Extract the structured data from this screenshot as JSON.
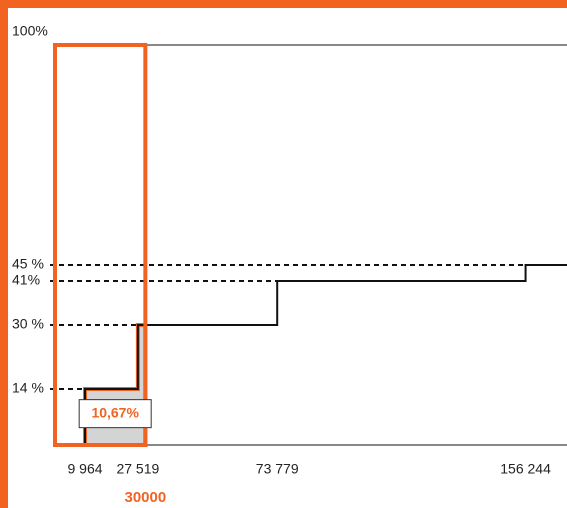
{
  "chart_data": {
    "type": "step",
    "series": [
      {
        "color": "#111111",
        "x": [
          0,
          9964,
          27519,
          73779,
          156244
        ],
        "values": [
          0,
          14,
          30,
          41,
          45
        ]
      }
    ],
    "xlim": [
      0,
      170000
    ],
    "ylim": [
      0,
      100
    ],
    "xticks": [
      {
        "value": 9964,
        "label": "9 964"
      },
      {
        "value": 27519,
        "label": "27 519"
      },
      {
        "value": 73779,
        "label": "73 779"
      },
      {
        "value": 156244,
        "label": "156 244"
      }
    ],
    "yticks": [
      {
        "value": 14,
        "label": "14 %"
      },
      {
        "value": 30,
        "label": "30 %"
      },
      {
        "value": 41,
        "label": "41%"
      },
      {
        "value": 45,
        "label": "45 %"
      },
      {
        "value": 100,
        "label": "100%"
      }
    ],
    "highlight": {
      "income": 30000,
      "average_rate": 10.67,
      "average_rate_label": "10,67%",
      "color": "#f26322",
      "fill": "#d4d4d4"
    }
  }
}
